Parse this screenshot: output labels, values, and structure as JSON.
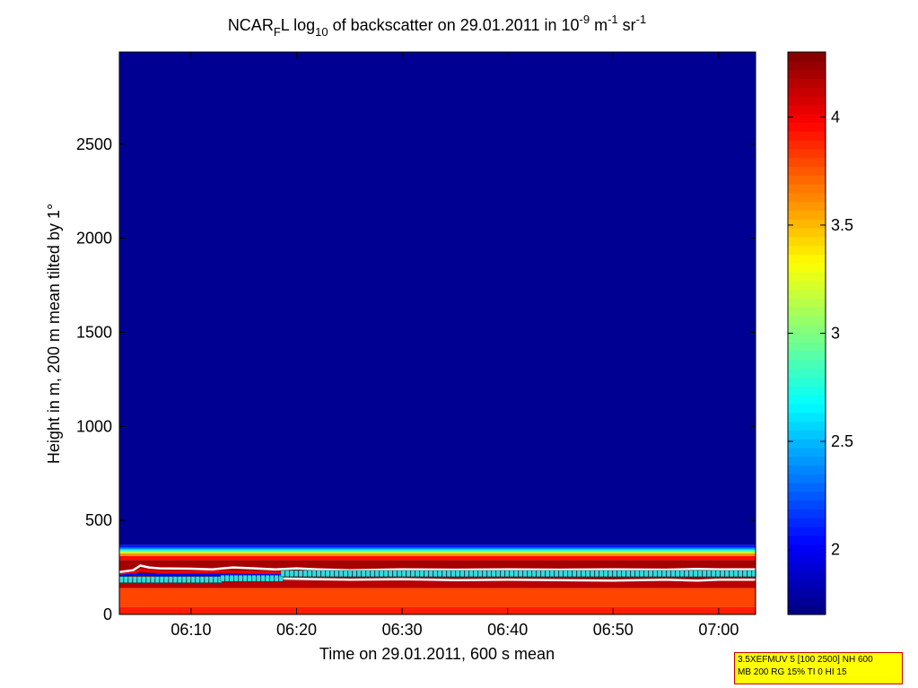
{
  "chart_data": {
    "type": "heatmap",
    "title": {
      "prefix": "NCAR",
      "sub1": "F",
      "mid": "L log",
      "sub2": "10",
      "mid2": " of backscatter on 29.01.2011 in 10",
      "sup1": "-9",
      "mid3": " m",
      "sup2": "-1",
      "mid4": " sr",
      "sup3": "-1"
    },
    "xlabel": "Time on 29.01.2011, 600 s mean",
    "ylabel": "Height in m, 200 m mean tilted by 1°",
    "x_ticks": [
      "06:10",
      "06:20",
      "06:30",
      "06:40",
      "06:50",
      "07:00"
    ],
    "x_tick_minutes": [
      370,
      380,
      390,
      400,
      410,
      420
    ],
    "xlim_minutes": [
      363.2,
      423.5
    ],
    "y_ticks": [
      0,
      500,
      1000,
      1500,
      2000,
      2500
    ],
    "ylim": [
      0,
      2990
    ],
    "colorbar": {
      "ticks": [
        2,
        2.5,
        3,
        3.5,
        4
      ],
      "tick_labels": [
        "2",
        "2.5",
        "3",
        "3.5",
        "4"
      ],
      "range": [
        1.7,
        4.3
      ],
      "colormap": "jet"
    },
    "backscatter_profile": {
      "description_free_layers": [
        {
          "bottom": 0,
          "top": 40,
          "value": 3.9
        },
        {
          "bottom": 40,
          "top": 140,
          "value": 3.8
        },
        {
          "bottom": 140,
          "top": 180,
          "value": 4.15
        },
        {
          "bottom": 180,
          "top": 230,
          "value": 4.25
        },
        {
          "bottom": 230,
          "top": 290,
          "value": 4.2
        },
        {
          "bottom": 290,
          "top": 310,
          "value": 3.95
        },
        {
          "bottom": 310,
          "top": 325,
          "value": 3.6
        },
        {
          "bottom": 325,
          "top": 335,
          "value": 3.2
        },
        {
          "bottom": 335,
          "top": 345,
          "value": 2.8
        },
        {
          "bottom": 345,
          "top": 355,
          "value": 2.4
        },
        {
          "bottom": 355,
          "top": 370,
          "value": 2.1
        },
        {
          "bottom": 370,
          "top": 2990,
          "value": 1.75
        }
      ]
    },
    "series": [
      {
        "color": "#ffffff",
        "style": "line",
        "points": [
          [
            363.2,
            225
          ],
          [
            364.5,
            235
          ],
          [
            365.2,
            260
          ],
          [
            366,
            250
          ],
          [
            367,
            245
          ],
          [
            370,
            243
          ],
          [
            372,
            240
          ],
          [
            373,
            245
          ],
          [
            374,
            250
          ],
          [
            376,
            245
          ],
          [
            378,
            240
          ],
          [
            380,
            245
          ],
          [
            382,
            240
          ],
          [
            385,
            235
          ],
          [
            390,
            240
          ],
          [
            395,
            238
          ],
          [
            400,
            240
          ],
          [
            405,
            238
          ],
          [
            410,
            240
          ],
          [
            415,
            238
          ],
          [
            418,
            242
          ],
          [
            420,
            240
          ],
          [
            423.5,
            240
          ]
        ]
      },
      {
        "color": "#ff0000",
        "style": "line",
        "points": [
          [
            363.2,
            212
          ],
          [
            364.5,
            220
          ],
          [
            365.2,
            235
          ],
          [
            367,
            225
          ],
          [
            370,
            225
          ],
          [
            373,
            228
          ],
          [
            376,
            222
          ],
          [
            380,
            220
          ],
          [
            385,
            218
          ],
          [
            390,
            218
          ],
          [
            400,
            218
          ],
          [
            410,
            218
          ],
          [
            420,
            218
          ],
          [
            423.5,
            218
          ]
        ]
      },
      {
        "color": "#0000ff",
        "style": "line",
        "points": [
          [
            363.2,
            205
          ],
          [
            365,
            215
          ],
          [
            367,
            208
          ],
          [
            370,
            210
          ],
          [
            375,
            208
          ],
          [
            380,
            210
          ],
          [
            383,
            225
          ],
          [
            385,
            212
          ],
          [
            390,
            210
          ],
          [
            400,
            210
          ],
          [
            410,
            210
          ],
          [
            423.5,
            210
          ]
        ]
      },
      {
        "color": "#ffffff",
        "style": "line",
        "points": [
          [
            363.2,
            195
          ],
          [
            370,
            192
          ],
          [
            375,
            195
          ],
          [
            380,
            190
          ],
          [
            385,
            185
          ],
          [
            390,
            188
          ],
          [
            395,
            182
          ],
          [
            400,
            185
          ],
          [
            405,
            182
          ],
          [
            410,
            180
          ],
          [
            415,
            185
          ],
          [
            418,
            180
          ],
          [
            420,
            185
          ],
          [
            423.5,
            185
          ]
        ]
      },
      {
        "color": "#33dddd",
        "style": "markers",
        "segments": [
          {
            "start": 363.2,
            "end": 372.8,
            "height": 183
          },
          {
            "start": 372.8,
            "end": 378.5,
            "height": 190
          },
          {
            "start": 378.5,
            "end": 423.5,
            "height": 215
          }
        ]
      }
    ]
  },
  "info_box": {
    "line1": "3.5XEFMUV 5 [100 2500] NH 600",
    "line2": "MB 200 RG 15% TI 0 HI 15",
    "background": "#ffff00",
    "border": "#cc0000"
  }
}
